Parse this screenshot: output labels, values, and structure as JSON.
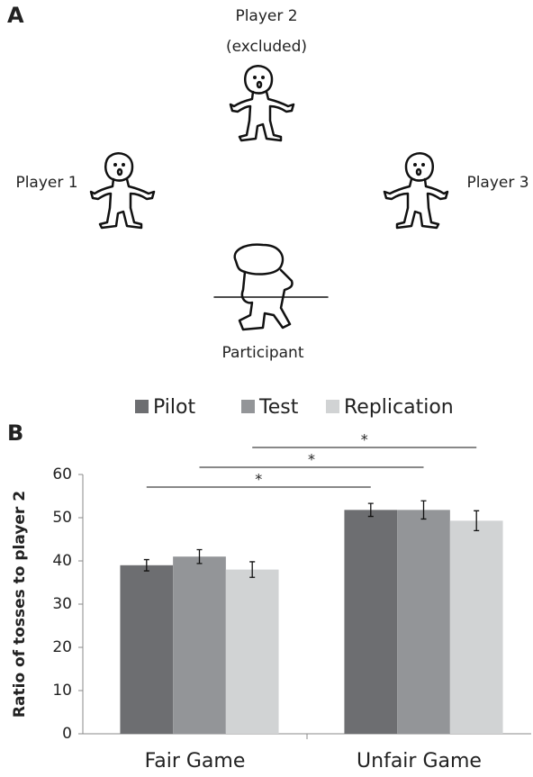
{
  "panel_a": {
    "label": "A",
    "top_player": "Player 2",
    "top_note": "(excluded)",
    "left_player": "Player 1",
    "right_player": "Player 3",
    "participant": "Participant"
  },
  "chart_data": {
    "type": "bar",
    "panel_label": "B",
    "categories": [
      "Fair Game",
      "Unfair Game"
    ],
    "series": [
      {
        "name": "Pilot",
        "color": "#6d6e71",
        "values": [
          39,
          51.8
        ],
        "errors": [
          1.3,
          1.5
        ]
      },
      {
        "name": "Test",
        "color": "#939598",
        "values": [
          41,
          51.8
        ],
        "errors": [
          1.6,
          2.1
        ]
      },
      {
        "name": "Replication",
        "color": "#d1d3d4",
        "values": [
          38,
          49.3
        ],
        "errors": [
          1.8,
          2.3
        ]
      }
    ],
    "ylabel": "Ratio of tosses to player 2",
    "ylim": [
      0,
      60
    ],
    "yticks": [
      0,
      10,
      20,
      30,
      40,
      50,
      60
    ],
    "annotations": [
      "*",
      "*",
      "*"
    ],
    "legend": "top"
  }
}
